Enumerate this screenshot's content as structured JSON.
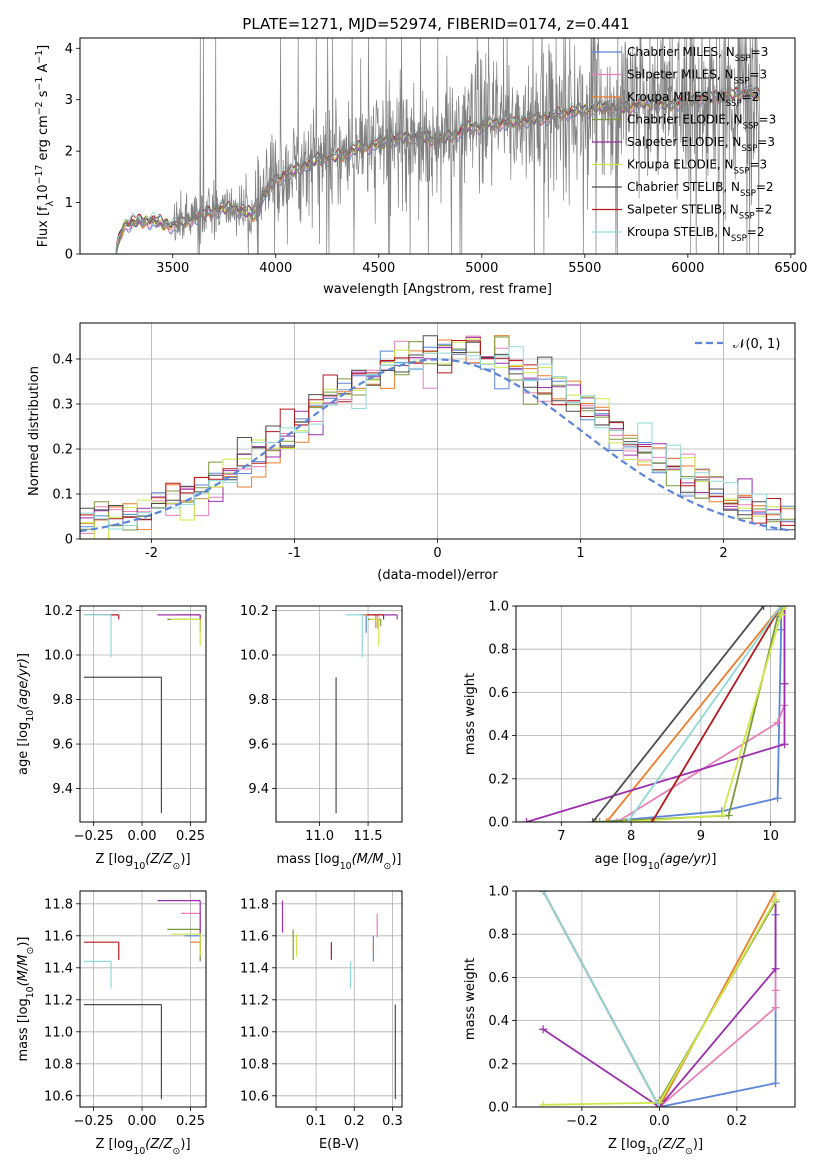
{
  "figure": {
    "title": "PLATE=1271, MJD=52974, FIBERID=0174, z=0.441"
  },
  "colors": {
    "Chabrier MILES": "#5b85d9",
    "Salpeter MILES": "#e87fb8",
    "Kroupa MILES": "#ea7d2b",
    "Chabrier ELODIE": "#7a9a3a",
    "Salpeter ELODIE": "#9b2fae",
    "Kroupa ELODIE": "#cde84a",
    "Chabrier STELIB": "#4d4d4d",
    "Salpeter STELIB": "#b2181c",
    "Kroupa STELIB": "#8fd8d8",
    "data": "#808080",
    "gaussian": "#5b85d9"
  },
  "chart_data": [
    {
      "id": "spectrum",
      "type": "line",
      "title": "PLATE=1271, MJD=52974, FIBERID=0174, z=0.441",
      "xlabel": "wavelength [Angstrom, rest frame]",
      "ylabel": "Flux [f_λ 10^-17 erg cm^-2 s^-1 A^-1]",
      "xlim": [
        3050,
        6520
      ],
      "ylim": [
        0,
        4.2
      ],
      "xticks": [
        3500,
        4000,
        4500,
        5000,
        5500,
        6000,
        6500
      ],
      "yticks": [
        0,
        1,
        2,
        3,
        4
      ],
      "grid": false,
      "legend": "right",
      "legend_entries": [
        {
          "model": "Chabrier MILES",
          "n": 3
        },
        {
          "model": "Salpeter MILES",
          "n": 3
        },
        {
          "model": "Kroupa MILES",
          "n": 2
        },
        {
          "model": "Chabrier ELODIE",
          "n": 3
        },
        {
          "model": "Salpeter ELODIE",
          "n": 3
        },
        {
          "model": "Kroupa ELODIE",
          "n": 3
        },
        {
          "model": "Chabrier STELIB",
          "n": 2
        },
        {
          "model": "Salpeter STELIB",
          "n": 2
        },
        {
          "model": "Kroupa STELIB",
          "n": 2
        }
      ],
      "model_continuum": {
        "x": [
          3220,
          3260,
          3300,
          3400,
          3500,
          3600,
          3700,
          3800,
          3900,
          3950,
          4000,
          4100,
          4200,
          4300,
          4400,
          4500,
          4600,
          4700,
          4800,
          4900,
          5000,
          5100,
          5200,
          5300,
          5400,
          5500,
          5600,
          5700,
          5800,
          5900,
          6000,
          6100,
          6200,
          6300,
          6350
        ],
        "y": [
          0.0,
          0.55,
          0.62,
          0.65,
          0.55,
          0.7,
          0.85,
          0.9,
          0.75,
          1.2,
          1.45,
          1.65,
          1.85,
          1.9,
          2.05,
          2.15,
          2.25,
          2.3,
          2.2,
          2.4,
          2.5,
          2.55,
          2.6,
          2.65,
          2.75,
          2.8,
          2.85,
          2.85,
          2.95,
          2.9,
          3.0,
          3.05,
          3.1,
          3.15,
          3.1
        ]
      },
      "observed_spectrum": {
        "wavelength_range": [
          3220,
          6350
        ],
        "flux_range": [
          0,
          4.2
        ]
      }
    },
    {
      "id": "residuals",
      "type": "line",
      "xlabel": "(data-model)/error",
      "ylabel": "Normed distribution",
      "xlim": [
        -2.5,
        2.5
      ],
      "ylim": [
        0,
        0.48
      ],
      "xticks": [
        -2,
        -1,
        0,
        1,
        2
      ],
      "yticks": [
        0.0,
        0.1,
        0.2,
        0.3,
        0.4
      ],
      "grid": true,
      "legend": "top-right",
      "legend_entries": [
        {
          "label": "𝒩(0, 1)",
          "series": "gaussian"
        }
      ],
      "bin_width": 0.1
    },
    {
      "id": "age-vs-Z",
      "type": "scatter",
      "xlabel": "Z [log10(Z/Z⊙)]",
      "ylabel": "age [log10(age/yr)]",
      "xlim": [
        -0.32,
        0.33
      ],
      "ylim": [
        9.25,
        10.22
      ],
      "xticks": [
        -0.25,
        0.0,
        0.25
      ],
      "yticks": [
        9.4,
        9.6,
        9.8,
        10.0,
        10.2
      ],
      "xtick_labels": [
        "−0.25",
        "0.00",
        "0.25"
      ],
      "ytick_labels": [
        "9.4",
        "9.6",
        "9.8",
        "10.0",
        "10.2"
      ],
      "grid": true
    },
    {
      "id": "age-vs-mass",
      "type": "scatter",
      "xlabel": "mass [log10(M/M⊙)]",
      "xlim": [
        10.55,
        11.85
      ],
      "ylim": [
        9.25,
        10.22
      ],
      "xticks": [
        11.0,
        11.5
      ],
      "yticks": [
        9.4,
        9.6,
        9.8,
        10.0,
        10.2
      ],
      "xtick_labels": [
        "11.0",
        "11.5"
      ],
      "ytick_labels": [
        "9.4",
        "9.6",
        "9.8",
        "10.0",
        "10.2"
      ],
      "grid": true
    },
    {
      "id": "massweight-vs-age",
      "type": "line",
      "xlabel": "age [log10(age/yr)]",
      "ylabel": "mass weight",
      "xlim": [
        6.35,
        10.35
      ],
      "ylim": [
        0,
        1
      ],
      "xticks": [
        7,
        8,
        9,
        10
      ],
      "yticks": [
        0.0,
        0.2,
        0.4,
        0.6,
        0.8,
        1.0
      ],
      "xtick_labels": [
        "7",
        "8",
        "9",
        "10"
      ],
      "ytick_labels": [
        "0.0",
        "0.2",
        "0.4",
        "0.6",
        "0.8",
        "1.0"
      ],
      "grid": true,
      "series": [
        {
          "model": "Chabrier MILES",
          "x": [
            7.55,
            9.3,
            10.1,
            10.15,
            10.15
          ],
          "y": [
            0.0,
            0.05,
            0.11,
            0.89,
            1.0
          ]
        },
        {
          "model": "Salpeter MILES",
          "x": [
            7.8,
            10.1,
            10.2,
            10.2
          ],
          "y": [
            0.0,
            0.46,
            0.54,
            1.0
          ]
        },
        {
          "model": "Kroupa MILES",
          "x": [
            7.65,
            10.15
          ],
          "y": [
            0.0,
            1.0
          ]
        },
        {
          "model": "Chabrier ELODIE",
          "x": [
            7.5,
            9.4,
            10.1,
            10.2
          ],
          "y": [
            0.0,
            0.03,
            0.95,
            1.0
          ]
        },
        {
          "model": "Salpeter ELODIE",
          "x": [
            6.5,
            10.2,
            10.2,
            10.2
          ],
          "y": [
            0.0,
            0.36,
            0.64,
            1.0
          ]
        },
        {
          "model": "Kroupa ELODIE",
          "x": [
            7.9,
            9.3,
            10.15,
            10.2
          ],
          "y": [
            0.0,
            0.03,
            0.96,
            1.0
          ]
        },
        {
          "model": "Chabrier STELIB",
          "x": [
            7.45,
            9.9
          ],
          "y": [
            0.0,
            1.0
          ]
        },
        {
          "model": "Salpeter STELIB",
          "x": [
            8.3,
            10.15
          ],
          "y": [
            0.0,
            1.0
          ]
        },
        {
          "model": "Kroupa STELIB",
          "x": [
            7.95,
            10.15
          ],
          "y": [
            0.0,
            1.0
          ]
        }
      ]
    },
    {
      "id": "mass-vs-Z",
      "type": "scatter",
      "xlabel": "Z [log10(Z/Z⊙)]",
      "ylabel": "mass [log10(M/M⊙)]",
      "xlim": [
        -0.32,
        0.33
      ],
      "ylim": [
        10.53,
        11.88
      ],
      "xticks": [
        -0.25,
        0.0,
        0.25
      ],
      "yticks": [
        10.6,
        10.8,
        11.0,
        11.2,
        11.4,
        11.6,
        11.8
      ],
      "xtick_labels": [
        "−0.25",
        "0.00",
        "0.25"
      ],
      "ytick_labels": [
        "10.6",
        "10.8",
        "11.0",
        "11.2",
        "11.4",
        "11.6",
        "11.8"
      ],
      "grid": true
    },
    {
      "id": "mass-vs-EBV",
      "type": "scatter",
      "xlabel": "E(B-V)",
      "xlim": [
        -0.005,
        0.325
      ],
      "ylim": [
        10.53,
        11.88
      ],
      "xticks": [
        0.1,
        0.2,
        0.3
      ],
      "yticks": [
        10.6,
        10.8,
        11.0,
        11.2,
        11.4,
        11.6,
        11.8
      ],
      "xtick_labels": [
        "0.1",
        "0.2",
        "0.3"
      ],
      "ytick_labels": [
        "10.6",
        "10.8",
        "11.0",
        "11.2",
        "11.4",
        "11.6",
        "11.8"
      ],
      "grid": true
    },
    {
      "id": "massweight-vs-Z",
      "type": "line",
      "xlabel": "Z [log10(Z/Z⊙)]",
      "ylabel": "mass weight",
      "xlim": [
        -0.37,
        0.35
      ],
      "ylim": [
        0,
        1
      ],
      "xticks": [
        -0.2,
        0.0,
        0.2
      ],
      "yticks": [
        0.0,
        0.2,
        0.4,
        0.6,
        0.8,
        1.0
      ],
      "xtick_labels": [
        "−0.2",
        "0.0",
        "0.2"
      ],
      "ytick_labels": [
        "0.0",
        "0.2",
        "0.4",
        "0.6",
        "0.8",
        "1.0"
      ],
      "grid": true,
      "series": [
        {
          "model": "Chabrier MILES",
          "x": [
            0.0,
            0.3,
            0.3,
            0.3
          ],
          "y": [
            0.0,
            0.11,
            0.89,
            1.0
          ]
        },
        {
          "model": "Salpeter MILES",
          "x": [
            0.0,
            0.3,
            0.3,
            0.3
          ],
          "y": [
            0.0,
            0.46,
            0.54,
            1.0
          ]
        },
        {
          "model": "Kroupa MILES",
          "x": [
            0.0,
            0.3
          ],
          "y": [
            0.0,
            1.0
          ]
        },
        {
          "model": "Chabrier ELODIE",
          "x": [
            0.0,
            0.0,
            0.3
          ],
          "y": [
            0.0,
            0.03,
            0.95
          ]
        },
        {
          "model": "Salpeter ELODIE",
          "x": [
            -0.3,
            0.0,
            0.3,
            0.3
          ],
          "y": [
            0.36,
            0.0,
            0.64,
            1.0
          ]
        },
        {
          "model": "Kroupa ELODIE",
          "x": [
            -0.3,
            0.0,
            0.3,
            0.3
          ],
          "y": [
            0.01,
            0.02,
            0.96,
            1.0
          ]
        },
        {
          "model": "Chabrier STELIB",
          "x": [
            -0.3,
            0.0
          ],
          "y": [
            1.0,
            0.0
          ]
        },
        {
          "model": "Salpeter STELIB",
          "x": [
            -0.3,
            0.0
          ],
          "y": [
            1.0,
            0.0
          ]
        },
        {
          "model": "Kroupa STELIB",
          "x": [
            -0.3,
            0.0
          ],
          "y": [
            1.0,
            0.0
          ]
        }
      ]
    }
  ],
  "point_estimates": [
    {
      "model": "Chabrier MILES",
      "Z": [
        0.22,
        0.3
      ],
      "age": [
        10.1,
        10.18
      ],
      "mass": [
        11.44,
        11.6
      ],
      "mass_age": [
        11.38,
        11.48
      ],
      "ebv": [
        0.245,
        0.255
      ]
    },
    {
      "model": "Salpeter MILES",
      "Z": [
        0.2,
        0.3
      ],
      "age": [
        10.12,
        10.18
      ],
      "mass": [
        11.59,
        11.74
      ],
      "mass_age": [
        11.55,
        11.6
      ],
      "ebv": [
        0.255,
        0.265
      ]
    },
    {
      "model": "Kroupa MILES",
      "Z": [
        0.25,
        0.3
      ],
      "age": [
        10.12,
        10.18
      ],
      "mass": [
        11.5,
        11.56
      ],
      "mass_age": [
        11.45,
        11.58
      ],
      "ebv": [
        0.245,
        0.255
      ]
    },
    {
      "model": "Chabrier ELODIE",
      "Z": [
        0.13,
        0.3
      ],
      "age": [
        10.13,
        10.16
      ],
      "mass": [
        11.45,
        11.64
      ],
      "mass_age": [
        11.5,
        11.63
      ],
      "ebv": [
        0.035,
        0.045
      ]
    },
    {
      "model": "Salpeter ELODIE",
      "Z": [
        0.08,
        0.3
      ],
      "age": [
        10.16,
        10.18
      ],
      "mass": [
        11.62,
        11.82
      ],
      "mass_age": [
        11.6,
        11.8
      ],
      "ebv": [
        0.008,
        0.016
      ]
    },
    {
      "model": "Kroupa ELODIE",
      "Z": [
        0.15,
        0.3
      ],
      "age": [
        10.04,
        10.16
      ],
      "mass": [
        11.47,
        11.61
      ],
      "mass_age": [
        11.52,
        11.61
      ],
      "ebv": [
        0.045,
        0.052
      ]
    },
    {
      "model": "Chabrier STELIB",
      "Z": [
        -0.3,
        0.1
      ],
      "age": [
        9.29,
        9.9
      ],
      "mass": [
        10.58,
        11.17
      ],
      "mass_age": [
        11.17,
        11.17
      ],
      "ebv": [
        0.305,
        0.31
      ]
    },
    {
      "model": "Salpeter STELIB",
      "Z": [
        -0.3,
        -0.12
      ],
      "age": [
        10.16,
        10.18
      ],
      "mass": [
        11.45,
        11.56
      ],
      "mass_age": [
        11.49,
        11.66
      ],
      "ebv": [
        0.135,
        0.145
      ]
    },
    {
      "model": "Kroupa STELIB",
      "Z": [
        -0.3,
        -0.16
      ],
      "age": [
        9.99,
        10.18
      ],
      "mass": [
        11.27,
        11.44
      ],
      "mass_age": [
        11.27,
        11.44
      ],
      "ebv": [
        0.185,
        0.195
      ]
    }
  ]
}
